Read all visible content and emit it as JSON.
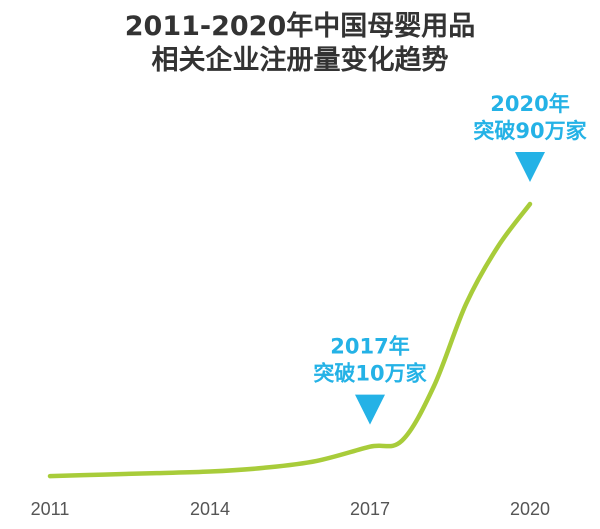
{
  "chart_data": {
    "type": "line",
    "title": [
      "2011-2020年中国母婴用品",
      "相关企业注册量变化趋势"
    ],
    "xlabel": "",
    "ylabel": "",
    "x_ticks": [
      "2011",
      "2014",
      "2017",
      "2020"
    ],
    "series": [
      {
        "x": [
          2011,
          2012,
          2013,
          2014,
          2015,
          2016,
          2017,
          2017.6,
          2018.2,
          2018.8,
          2019.4,
          2020
        ],
        "values": [
          0.3,
          0.8,
          1.3,
          1.8,
          3.0,
          5.3,
          10,
          12,
          30,
          57,
          76,
          90
        ],
        "color": "#a8cc3a"
      }
    ],
    "annotations": [
      {
        "x": 2017,
        "y": 10,
        "lines": [
          "2017年",
          "突破10万家"
        ],
        "color": "#24b2e6"
      },
      {
        "x": 2020,
        "y": 90,
        "lines": [
          "2020年",
          "突破90万家"
        ],
        "color": "#24b2e6"
      }
    ],
    "ylim": [
      0,
      90
    ],
    "xlim": [
      2011,
      2020
    ],
    "grid": false,
    "legend": "none"
  }
}
